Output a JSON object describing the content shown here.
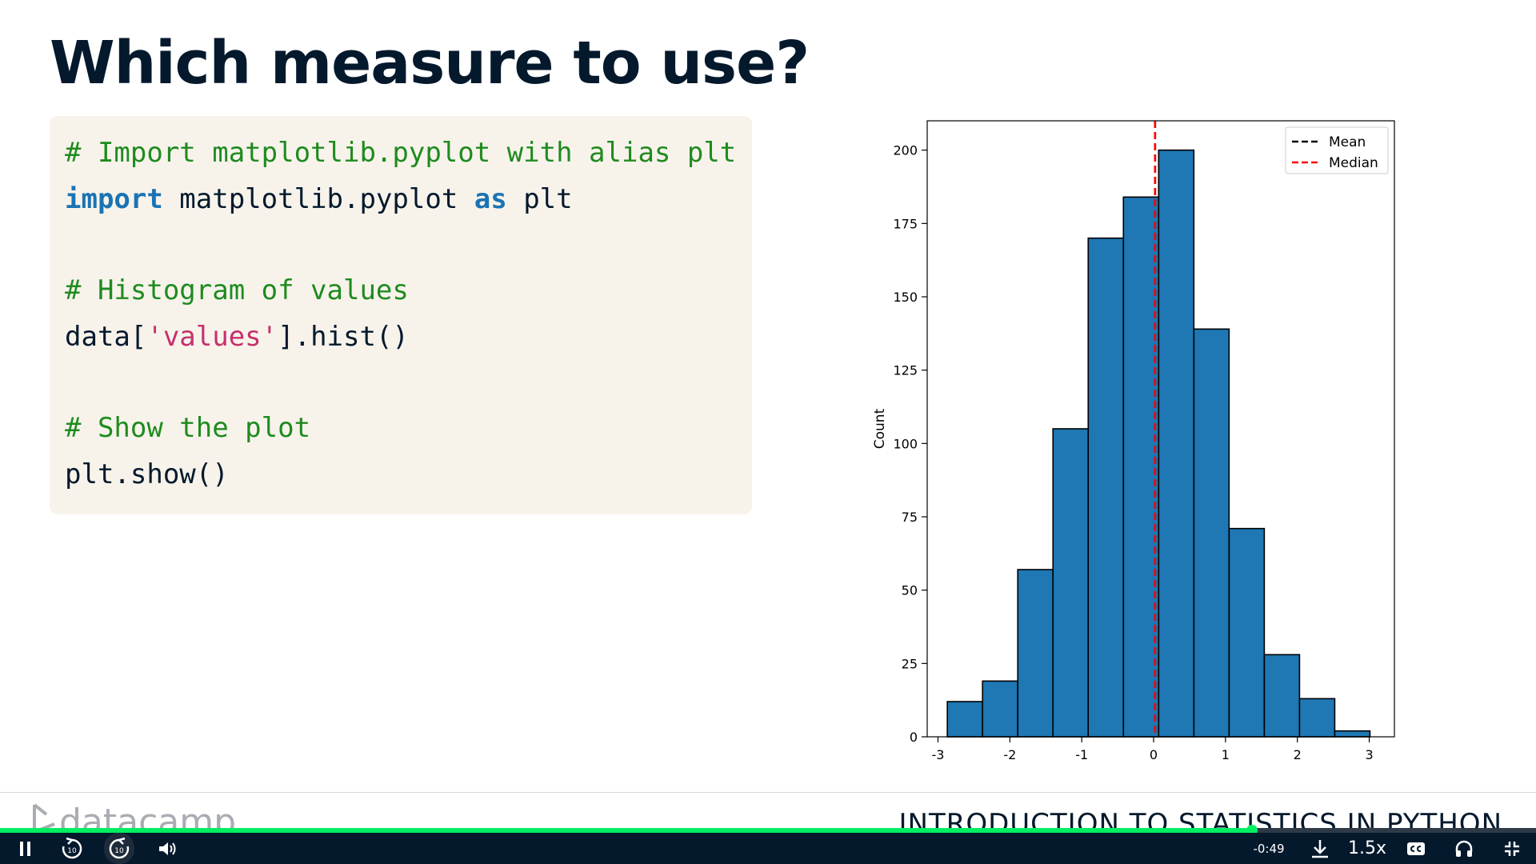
{
  "slide": {
    "title": "Which measure to use?",
    "code": {
      "comment1": "# Import matplotlib.pyplot with alias plt",
      "line2_kw1": "import",
      "line2_mid": " matplotlib.pyplot ",
      "line2_kw2": "as",
      "line2_end": " plt",
      "comment2": "# Histogram of values",
      "line5_start": "data[",
      "line5_str": "'values'",
      "line5_end": "].hist()",
      "comment3": "# Show the plot",
      "line8": "plt.show()"
    }
  },
  "chart_data": {
    "type": "bar",
    "title": "",
    "xlabel": "",
    "ylabel": "Count",
    "xlim": [
      -3.15,
      3.35
    ],
    "ylim": [
      0,
      210
    ],
    "x_ticks": [
      -3,
      -2,
      -1,
      0,
      1,
      2,
      3
    ],
    "x_tick_labels": [
      "-3",
      "-2",
      "-1",
      "0",
      "1",
      "2",
      "3"
    ],
    "y_ticks": [
      0,
      25,
      50,
      75,
      100,
      125,
      150,
      175,
      200
    ],
    "y_tick_labels": [
      "0",
      "25",
      "50",
      "75",
      "100",
      "125",
      "150",
      "175",
      "200"
    ],
    "bin_edges": [
      -2.87,
      -2.38,
      -1.89,
      -1.4,
      -0.91,
      -0.42,
      0.07,
      0.56,
      1.05,
      1.54,
      2.03,
      2.52,
      3.01
    ],
    "counts": [
      12,
      19,
      57,
      105,
      170,
      184,
      200,
      139,
      71,
      28,
      13,
      2
    ],
    "bar_color": "#1f77b4",
    "lines": [
      {
        "name": "Mean",
        "x": 0.02,
        "color": "#000000",
        "style": "dashed"
      },
      {
        "name": "Median",
        "x": 0.02,
        "color": "#ff0000",
        "style": "dashed"
      }
    ],
    "legend_position": "top-right",
    "grid": false
  },
  "footer": {
    "logo_text": "datacamp",
    "course_title": "INTRODUCTION TO STATISTICS IN PYTHON"
  },
  "player": {
    "progress": 0.815,
    "time_remaining": "-0:49",
    "speed": "1.5x",
    "rewind_label": "10",
    "forward_label": "10",
    "accent": "#03ef62",
    "bar_bg": "#05192d"
  }
}
